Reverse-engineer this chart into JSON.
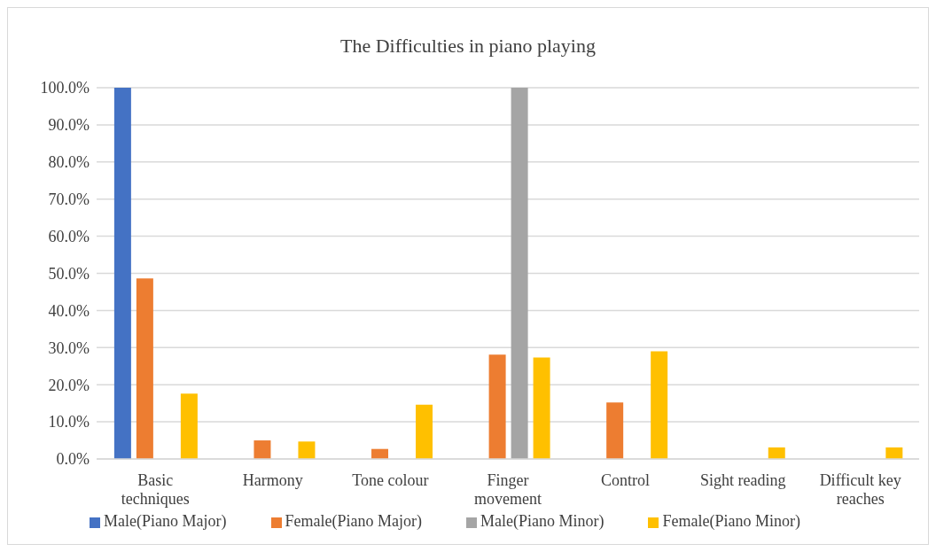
{
  "chart_data": {
    "type": "bar",
    "title": "The Difficulties in piano playing",
    "categories": [
      "Basic techniques",
      "Harmony",
      "Tone colour",
      "Finger movement",
      "Control",
      "Sight reading",
      "Difficult key reaches"
    ],
    "series": [
      {
        "name": "Male(Piano Major)",
        "color": "#4472c4",
        "values": [
          100,
          0,
          0,
          0,
          0,
          0,
          0
        ]
      },
      {
        "name": "Female(Piano Major)",
        "color": "#ed7d31",
        "values": [
          48.6,
          5,
          2.7,
          28.1,
          15.2,
          0,
          0
        ]
      },
      {
        "name": "Male(Piano Minor)",
        "color": "#a5a5a5",
        "values": [
          0,
          0,
          0,
          100,
          0,
          0,
          0
        ]
      },
      {
        "name": "Female(Piano Minor)",
        "color": "#ffc000",
        "values": [
          17.6,
          4.7,
          14.6,
          27.3,
          29,
          3.1,
          3.1
        ]
      }
    ],
    "ylim": [
      0,
      100
    ],
    "yticks": [
      {
        "value": 0,
        "label": "0.0%"
      },
      {
        "value": 10,
        "label": "10.0%"
      },
      {
        "value": 20,
        "label": "20.0%"
      },
      {
        "value": 30,
        "label": "30.0%"
      },
      {
        "value": 40,
        "label": "40.0%"
      },
      {
        "value": 50,
        "label": "50.0%"
      },
      {
        "value": 60,
        "label": "60.0%"
      },
      {
        "value": 70,
        "label": "70.0%"
      },
      {
        "value": 80,
        "label": "80.0%"
      },
      {
        "value": 90,
        "label": "90.0%"
      },
      {
        "value": 100,
        "label": "100.0%"
      }
    ],
    "grid": "y",
    "legend": "bottom"
  }
}
